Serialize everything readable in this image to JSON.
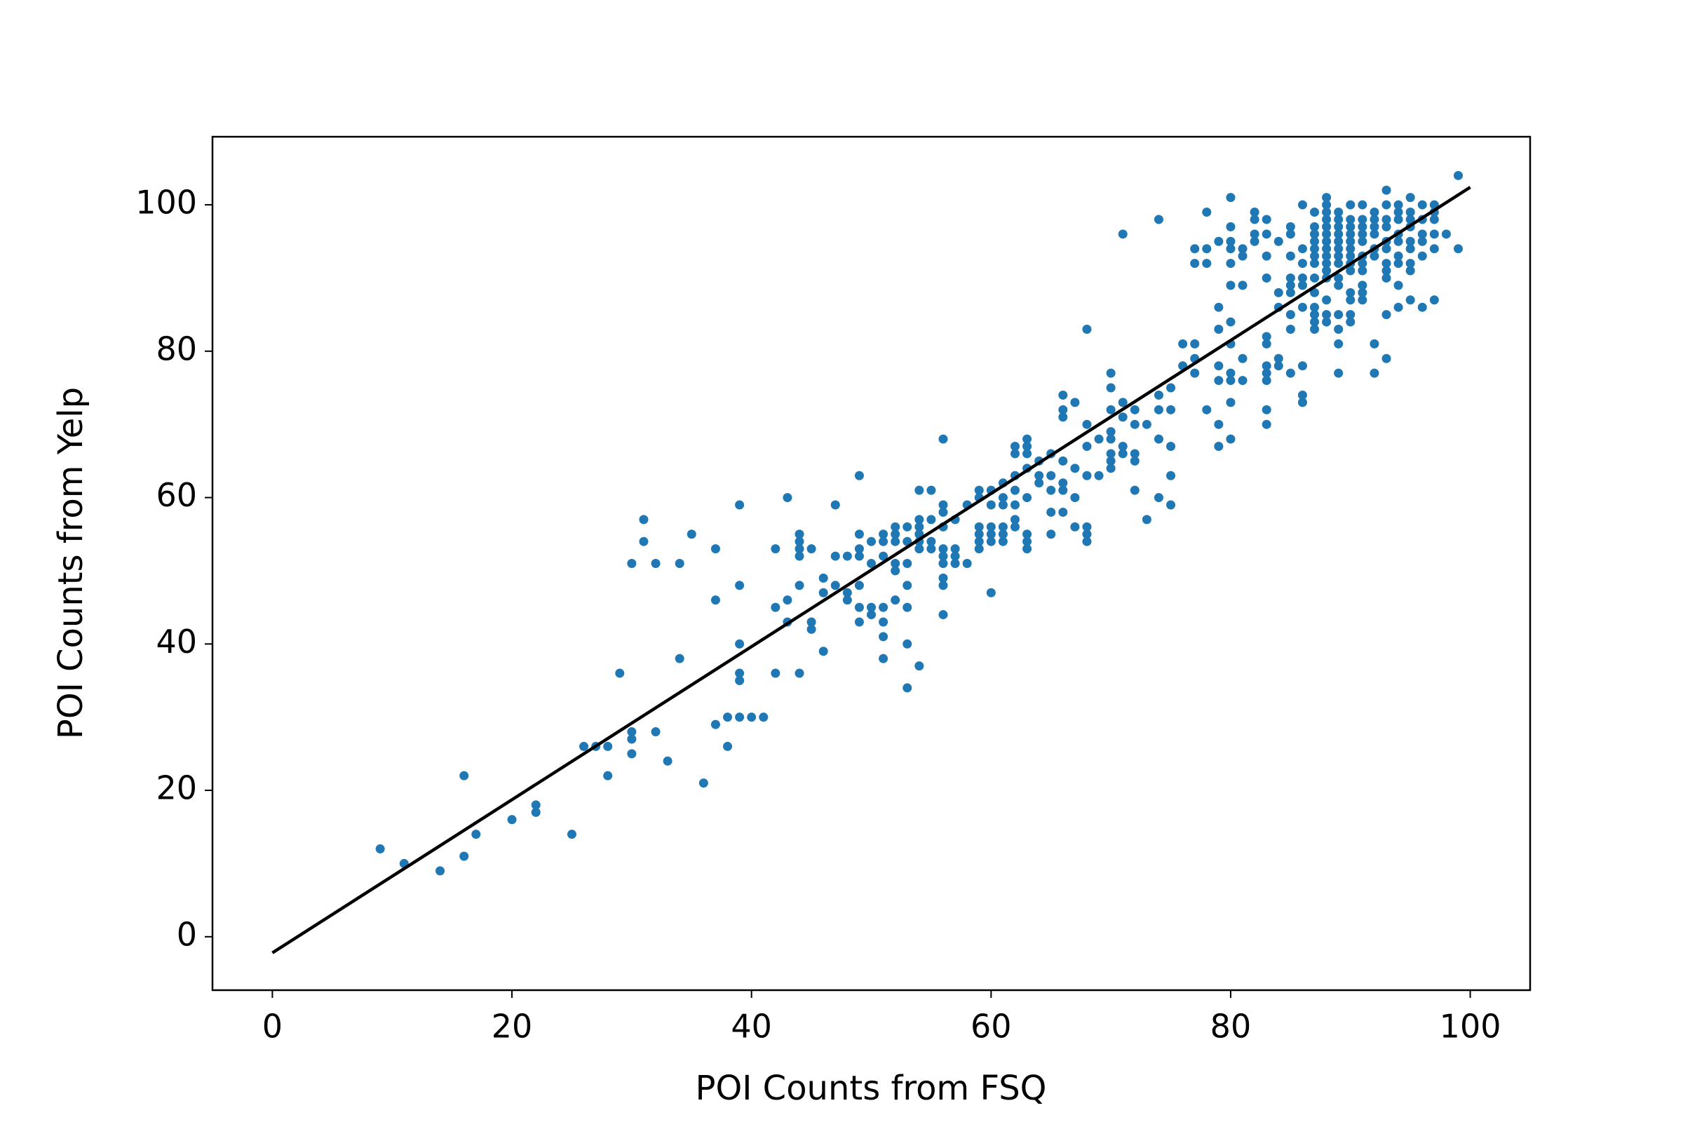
{
  "chart_data": {
    "type": "scatter",
    "xlabel": "POI Counts from FSQ",
    "ylabel": "POI Counts from Yelp",
    "color": "#1f77b4",
    "xlim": [
      -5,
      105
    ],
    "ylim": [
      -7.3,
      109.3
    ],
    "xticks": [
      0,
      20,
      40,
      60,
      80,
      100
    ],
    "yticks": [
      0,
      20,
      40,
      60,
      80,
      100
    ],
    "x": [
      9,
      11,
      14,
      16,
      16,
      17,
      20,
      22,
      22,
      25,
      26,
      27,
      28,
      28,
      29,
      30,
      30,
      30,
      30,
      31,
      31,
      32,
      32,
      33,
      34,
      34,
      35,
      36,
      37,
      37,
      37,
      38,
      38,
      39,
      39,
      39,
      39,
      39,
      39,
      40,
      41,
      42,
      42,
      42,
      43,
      43,
      43,
      44,
      44,
      44,
      44,
      44,
      44,
      45,
      45,
      45,
      46,
      46,
      46,
      47,
      47,
      47,
      48,
      48,
      48,
      49,
      49,
      49,
      49,
      49,
      49,
      49,
      50,
      50,
      50,
      50,
      51,
      51,
      51,
      51,
      51,
      51,
      51,
      52,
      52,
      52,
      52,
      52,
      52,
      53,
      53,
      53,
      53,
      53,
      53,
      53,
      54,
      54,
      54,
      54,
      54,
      54,
      54,
      55,
      55,
      55,
      55,
      56,
      56,
      56,
      56,
      56,
      56,
      56,
      56,
      56,
      56,
      57,
      57,
      57,
      57,
      58,
      58,
      59,
      59,
      59,
      59,
      59,
      59,
      60,
      60,
      60,
      60,
      60,
      60,
      61,
      61,
      61,
      61,
      61,
      61,
      62,
      62,
      62,
      62,
      62,
      62,
      62,
      63,
      63,
      63,
      63,
      63,
      63,
      63,
      63,
      64,
      64,
      64,
      65,
      65,
      65,
      65,
      65,
      66,
      66,
      66,
      66,
      66,
      66,
      66,
      67,
      67,
      67,
      67,
      68,
      68,
      68,
      68,
      68,
      68,
      68,
      69,
      69,
      70,
      70,
      70,
      70,
      70,
      70,
      70,
      70,
      71,
      71,
      71,
      71,
      71,
      72,
      72,
      72,
      72,
      72,
      73,
      73,
      74,
      74,
      74,
      74,
      74,
      75,
      75,
      75,
      75,
      75,
      76,
      76,
      77,
      77,
      77,
      77,
      77,
      78,
      78,
      78,
      78,
      79,
      79,
      79,
      79,
      79,
      79,
      79,
      80,
      80,
      80,
      80,
      80,
      80,
      80,
      80,
      80,
      80,
      80,
      80,
      81,
      81,
      81,
      81,
      81,
      82,
      82,
      82,
      82,
      83,
      83,
      83,
      83,
      83,
      83,
      83,
      83,
      83,
      83,
      83,
      84,
      84,
      84,
      84,
      84,
      85,
      85,
      85,
      85,
      85,
      85,
      85,
      85,
      85,
      86,
      86,
      86,
      86,
      86,
      86,
      86,
      86,
      86,
      87,
      87,
      87,
      87,
      87,
      87,
      87,
      87,
      87,
      87,
      87,
      87,
      87,
      88,
      88,
      88,
      88,
      88,
      88,
      88,
      88,
      88,
      88,
      88,
      88,
      88,
      88,
      88,
      89,
      89,
      89,
      89,
      89,
      89,
      89,
      89,
      89,
      89,
      89,
      89,
      89,
      89,
      90,
      90,
      90,
      90,
      90,
      90,
      90,
      90,
      90,
      90,
      90,
      90,
      90,
      91,
      91,
      91,
      91,
      91,
      91,
      91,
      91,
      91,
      91,
      91,
      92,
      92,
      92,
      92,
      92,
      92,
      92,
      92,
      93,
      93,
      93,
      93,
      93,
      93,
      93,
      93,
      93,
      93,
      93,
      94,
      94,
      94,
      94,
      94,
      94,
      94,
      94,
      94,
      95,
      95,
      95,
      95,
      95,
      95,
      95,
      95,
      95,
      96,
      96,
      96,
      96,
      96,
      96,
      97,
      97,
      97,
      97,
      97,
      97,
      98,
      99,
      99
    ],
    "values": [
      12,
      10,
      9,
      22,
      11,
      14,
      16,
      18,
      17,
      14,
      26,
      26,
      26,
      22,
      36,
      28,
      27,
      25,
      51,
      57,
      54,
      51,
      28,
      24,
      51,
      38,
      55,
      21,
      53,
      46,
      29,
      30,
      26,
      59,
      48,
      40,
      36,
      35,
      30,
      30,
      30,
      53,
      45,
      36,
      60,
      46,
      43,
      55,
      54,
      53,
      52,
      48,
      36,
      53,
      43,
      42,
      49,
      47,
      39,
      59,
      52,
      48,
      52,
      47,
      46,
      63,
      55,
      53,
      52,
      48,
      45,
      43,
      54,
      51,
      45,
      44,
      55,
      54,
      52,
      45,
      43,
      41,
      38,
      56,
      55,
      54,
      51,
      50,
      46,
      56,
      54,
      51,
      48,
      45,
      40,
      34,
      61,
      57,
      56,
      55,
      54,
      53,
      37,
      61,
      57,
      54,
      53,
      68,
      59,
      58,
      56,
      53,
      52,
      51,
      49,
      48,
      44,
      57,
      53,
      52,
      51,
      59,
      51,
      61,
      60,
      56,
      55,
      54,
      53,
      61,
      59,
      56,
      55,
      54,
      47,
      62,
      60,
      59,
      56,
      55,
      54,
      67,
      66,
      63,
      61,
      59,
      57,
      56,
      68,
      67,
      66,
      64,
      60,
      55,
      54,
      53,
      65,
      63,
      62,
      66,
      63,
      61,
      58,
      55,
      74,
      72,
      71,
      65,
      62,
      61,
      58,
      73,
      64,
      60,
      56,
      83,
      70,
      67,
      63,
      56,
      55,
      54,
      68,
      63,
      77,
      75,
      72,
      69,
      68,
      66,
      65,
      64,
      96,
      73,
      71,
      67,
      66,
      72,
      70,
      66,
      65,
      61,
      70,
      57,
      98,
      74,
      72,
      68,
      60,
      75,
      72,
      67,
      63,
      59,
      81,
      78,
      94,
      92,
      81,
      79,
      77,
      99,
      94,
      92,
      72,
      95,
      86,
      83,
      78,
      76,
      70,
      67,
      101,
      97,
      95,
      94,
      92,
      89,
      84,
      81,
      77,
      76,
      73,
      68,
      94,
      93,
      89,
      79,
      76,
      99,
      98,
      96,
      95,
      98,
      96,
      93,
      90,
      82,
      81,
      78,
      77,
      76,
      72,
      70,
      95,
      88,
      86,
      79,
      78,
      97,
      96,
      93,
      90,
      89,
      88,
      85,
      83,
      77,
      100,
      94,
      92,
      90,
      89,
      86,
      78,
      74,
      73,
      99,
      97,
      96,
      95,
      94,
      93,
      92,
      90,
      88,
      86,
      85,
      84,
      83,
      101,
      100,
      99,
      98,
      97,
      96,
      95,
      94,
      93,
      92,
      91,
      90,
      87,
      85,
      84,
      99,
      98,
      97,
      96,
      95,
      94,
      93,
      92,
      90,
      89,
      85,
      83,
      81,
      77,
      100,
      98,
      97,
      96,
      95,
      94,
      93,
      92,
      91,
      88,
      87,
      85,
      84,
      100,
      98,
      97,
      96,
      95,
      93,
      92,
      91,
      89,
      88,
      87,
      99,
      98,
      97,
      96,
      94,
      93,
      81,
      77,
      102,
      100,
      98,
      97,
      95,
      94,
      92,
      91,
      90,
      85,
      79,
      100,
      99,
      98,
      96,
      95,
      93,
      92,
      89,
      86,
      101,
      99,
      98,
      97,
      95,
      94,
      92,
      91,
      87,
      100,
      98,
      96,
      95,
      93,
      86,
      100,
      99,
      98,
      96,
      94,
      87,
      96,
      104,
      94
    ],
    "line": {
      "x": [
        0,
        100
      ],
      "y": [
        -2.2,
        102.4
      ],
      "color": "#000000"
    }
  }
}
